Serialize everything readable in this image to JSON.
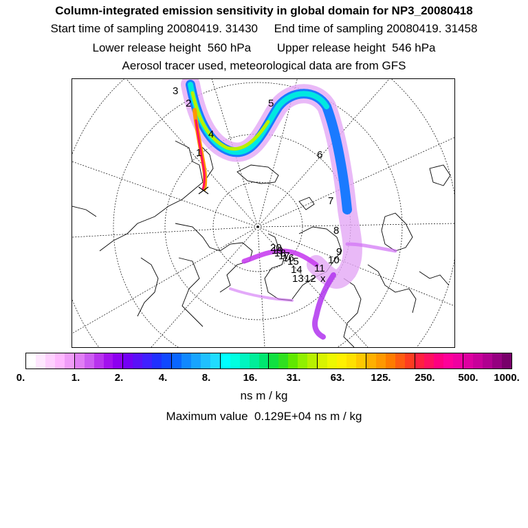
{
  "header": {
    "title": "Column-integrated emission sensitivity in global domain for NP3_20080418",
    "line2": "Start time of sampling 20080419. 31430     End time of sampling 20080419. 31458",
    "line3": "Lower release height  560 hPa        Upper release height  546 hPa",
    "line4": "Aerosol tracer used, meteorological data are from GFS"
  },
  "map": {
    "projection": "polar-stereographic",
    "track_labels": [
      "1",
      "2",
      "3",
      "4",
      "5",
      "6",
      "7",
      "8",
      "9",
      "10",
      "11",
      "12",
      "13",
      "14",
      "15",
      "16",
      "17",
      "18",
      "19",
      "20"
    ],
    "release_marker": "x"
  },
  "colorbar": {
    "tick_labels": [
      "0.",
      "1.",
      "2.",
      "4.",
      "8.",
      "16.",
      "31.",
      "63.",
      "125.",
      "250.",
      "500.",
      "1000."
    ],
    "colors": [
      "#ffffff",
      "#ffe8ff",
      "#ffd0ff",
      "#ffb8ff",
      "#f09cf8",
      "#e07ef5",
      "#cc5cf2",
      "#b833ee",
      "#a311ee",
      "#8d00f0",
      "#7300f5",
      "#5a10f8",
      "#4020ff",
      "#2030ff",
      "#1048ff",
      "#0a66ff",
      "#1088ff",
      "#18a4ff",
      "#20c0ff",
      "#20dcff",
      "#00ffff",
      "#00ffe0",
      "#00f5c0",
      "#00ee99",
      "#00e670",
      "#10e040",
      "#30e020",
      "#60e800",
      "#90f000",
      "#b8f000",
      "#d8f400",
      "#eef800",
      "#fff000",
      "#ffe000",
      "#ffc800",
      "#ffb000",
      "#ff9800",
      "#ff7c00",
      "#ff5c10",
      "#ff3c20",
      "#ff2040",
      "#ff1060",
      "#ff0080",
      "#ff0099",
      "#f000a0",
      "#dd00a0",
      "#c8009a",
      "#b00090",
      "#950080",
      "#78006a"
    ]
  },
  "units": "ns m / kg",
  "maximum": "Maximum value  0.129E+04 ns m / kg"
}
